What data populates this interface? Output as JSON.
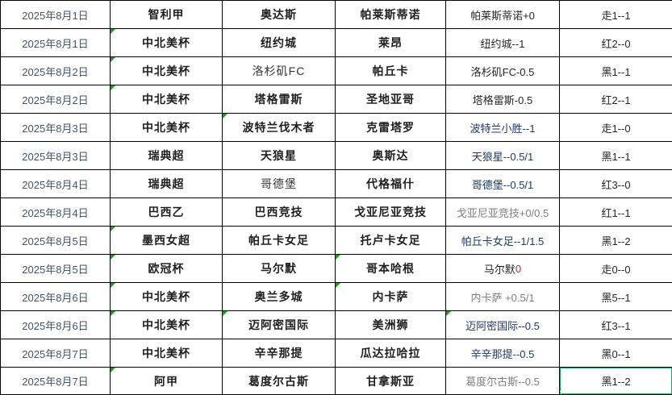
{
  "table": {
    "column_keys": [
      "date",
      "league",
      "home",
      "away",
      "handicap",
      "result"
    ],
    "rows": [
      {
        "date": "2025年8月1日",
        "league": "智利甲",
        "home": "奥达斯",
        "away": "帕莱斯蒂诺",
        "handicap": "帕莱斯蒂诺+0",
        "handicap_accent": "",
        "handicap_style": "dark",
        "result": "走1--1",
        "home_weight": "bold",
        "triangles": []
      },
      {
        "date": "2025年8月1日",
        "league": "中北美杯",
        "home": "纽约城",
        "away": "莱昂",
        "handicap": "纽约城--1",
        "handicap_accent": "",
        "handicap_style": "dark",
        "result": "红2--0",
        "home_weight": "bold",
        "triangles": [
          "league"
        ]
      },
      {
        "date": "2025年8月2日",
        "league": "中北美杯",
        "home": "洛杉矶FC",
        "away": "帕丘卡",
        "handicap": "洛杉矶FC-0.5",
        "handicap_accent": "",
        "handicap_style": "dark",
        "result": "黑1--1",
        "home_weight": "normal",
        "triangles": [
          "league"
        ]
      },
      {
        "date": "2025年8月2日",
        "league": "中北美杯",
        "home": "塔格雷斯",
        "away": "圣地亚哥",
        "handicap": "塔格雷斯-0.5",
        "handicap_accent": "",
        "handicap_style": "dark",
        "result": "红2--1",
        "home_weight": "bold",
        "triangles": [
          "league"
        ]
      },
      {
        "date": "2025年8月3日",
        "league": "中北美杯",
        "home": "波特兰伐木者",
        "away": "克雷塔罗",
        "handicap": "波特兰小胜--1",
        "handicap_accent": "",
        "handicap_style": "navy",
        "result": "走1--0",
        "home_weight": "bold",
        "triangles": [
          "home"
        ]
      },
      {
        "date": "2025年8月3日",
        "league": "瑞典超",
        "home": "天狼星",
        "away": "奥斯达",
        "handicap": "天狼星--0.5/1",
        "handicap_accent": "",
        "handicap_style": "navy",
        "result": "黑1--1",
        "home_weight": "bold",
        "triangles": []
      },
      {
        "date": "2025年8月4日",
        "league": "瑞典超",
        "home": "哥德堡",
        "away": "代格福什",
        "handicap": "哥德堡--0.5/1",
        "handicap_accent": "",
        "handicap_style": "navy",
        "result": "红3--0",
        "home_weight": "normal",
        "triangles": []
      },
      {
        "date": "2025年8月4日",
        "league": "巴西乙",
        "home": "巴西竞技",
        "away": "戈亚尼亚竞技",
        "handicap": "戈亚尼亚竞技+0/0.5",
        "handicap_accent": "",
        "handicap_style": "gray",
        "result": "红1--1",
        "home_weight": "bold",
        "triangles": []
      },
      {
        "date": "2025年8月5日",
        "league": "墨西女超",
        "home": "帕丘卡女足",
        "away": "托卢卡女足",
        "handicap": "帕丘卡女足--1/1.5",
        "handicap_accent": "",
        "handicap_style": "navy",
        "result": "黑1--2",
        "home_weight": "bold",
        "triangles": [
          "league"
        ]
      },
      {
        "date": "2025年8月5日",
        "league": "欧冠杯",
        "home": "马尔默",
        "away": "哥本哈根",
        "handicap": "马尔默 ",
        "handicap_accent": "0",
        "handicap_style": "dark",
        "result": "走0--0",
        "home_weight": "bold",
        "triangles": [
          "league",
          "away"
        ]
      },
      {
        "date": "2025年8月6日",
        "league": "中北美杯",
        "home": "奥兰多城",
        "away": "内卡萨",
        "handicap": "内卡萨 +0.5/1",
        "handicap_accent": "",
        "handicap_style": "gray",
        "result": "黑5--1",
        "home_weight": "bold",
        "triangles": [
          "league",
          "away"
        ]
      },
      {
        "date": "2025年8月6日",
        "league": "中北美杯",
        "home": "迈阿密国际",
        "away": "美洲狮",
        "handicap": "迈阿密国际--0.5",
        "handicap_accent": "",
        "handicap_style": "navy",
        "result": "红3--1",
        "home_weight": "bold",
        "triangles": [
          "league",
          "home",
          "handicap"
        ]
      },
      {
        "date": "2025年8月7日",
        "league": "中北美杯",
        "home": "辛辛那提",
        "away": "瓜达拉哈拉",
        "handicap": "辛辛那提--0.5",
        "handicap_accent": "",
        "handicap_style": "navy",
        "result": "黑0--1",
        "home_weight": "bold",
        "triangles": []
      },
      {
        "date": "2025年8月7日",
        "league": "阿甲",
        "home": "葛度尔古斯",
        "away": "甘拿斯亚",
        "handicap": "葛度尔古斯--0.5",
        "handicap_accent": "",
        "handicap_style": "gray",
        "result": "黑1--2",
        "home_weight": "bold",
        "triangles": [
          "league"
        ]
      }
    ]
  },
  "selection": {
    "row_index": 13,
    "column": "result"
  },
  "colors": {
    "grid_line": "#000000",
    "date_text": "#44546a",
    "bold_text": "#1f1f1f",
    "handicap_dark": "#262626",
    "handicap_navy": "#1f3864",
    "handicap_gray": "#7f7f7f",
    "handicap_accent": "#963634",
    "note_triangle": "#17a017",
    "selection_border": "#21a366"
  },
  "icons": {
    "note_triangle": "cell-note-triangle-icon",
    "fill_handle": "selection-fill-handle"
  }
}
